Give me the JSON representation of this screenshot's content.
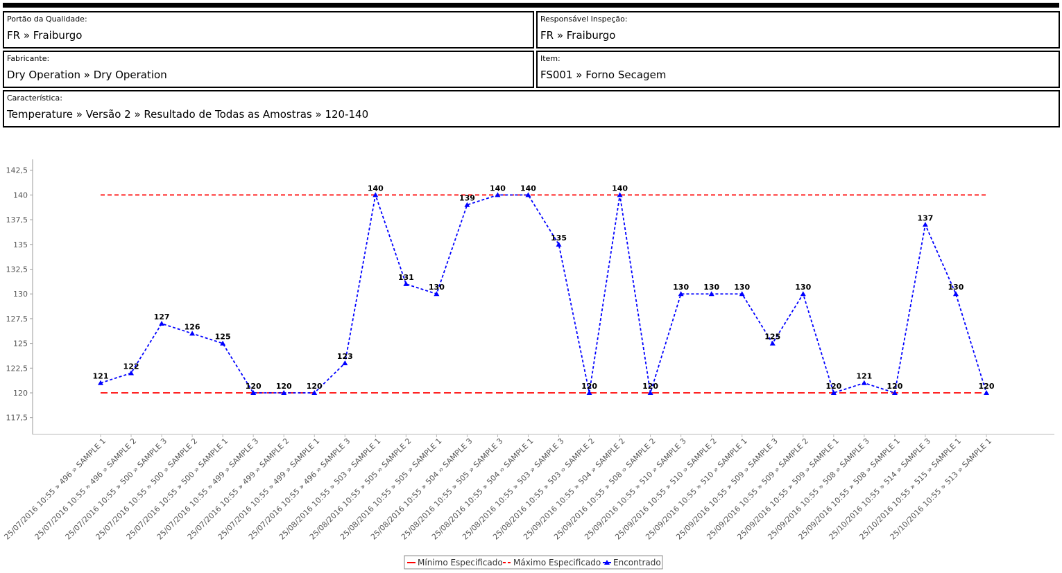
{
  "fields": [
    {
      "label": "Portão da Qualidade:",
      "value": "FR » Fraiburgo"
    },
    {
      "label": "Responsável Inspeção:",
      "value": "FR » Fraiburgo"
    },
    {
      "label": "Fabricante:",
      "value": "Dry Operation » Dry Operation"
    },
    {
      "label": "Item:",
      "value": "FS001 » Forno Secagem"
    },
    {
      "label": "Característica:",
      "value": "Temperature » Versão 2 » Resultado de Todas as Amostras » 120-140"
    }
  ],
  "chart_data": {
    "type": "line",
    "categories": [
      "25/07/2016 10:55 » 496 » SAMPLE 1",
      "25/07/2016 10:55 » 496 » SAMPLE 2",
      "25/07/2016 10:55 » 500 » SAMPLE 3",
      "25/07/2016 10:55 » 500 » SAMPLE 2",
      "25/07/2016 10:55 » 500 » SAMPLE 1",
      "25/07/2016 10:55 » 499 » SAMPLE 3",
      "25/07/2016 10:55 » 499 » SAMPLE 2",
      "25/07/2016 10:55 » 499 » SAMPLE 1",
      "25/07/2016 10:55 » 496 » SAMPLE 3",
      "25/08/2016 10:55 » 503 » SAMPLE 1",
      "25/08/2016 10:55 » 505 » SAMPLE 2",
      "25/08/2016 10:55 » 505 » SAMPLE 1",
      "25/08/2016 10:55 » 504 » SAMPLE 3",
      "25/08/2016 10:55 » 505 » SAMPLE 3",
      "25/08/2016 10:55 » 504 » SAMPLE 1",
      "25/08/2016 10:55 » 503 » SAMPLE 3",
      "25/08/2016 10:55 » 503 » SAMPLE 2",
      "25/09/2016 10:55 » 504 » SAMPLE 2",
      "25/09/2016 10:55 » 508 » SAMPLE 2",
      "25/09/2016 10:55 » 510 » SAMPLE 3",
      "25/09/2016 10:55 » 510 » SAMPLE 2",
      "25/09/2016 10:55 » 510 » SAMPLE 1",
      "25/09/2016 10:55 » 509 » SAMPLE 3",
      "25/09/2016 10:55 » 509 » SAMPLE 2",
      "25/09/2016 10:55 » 509 » SAMPLE 1",
      "25/09/2016 10:55 » 508 » SAMPLE 3",
      "25/09/2016 10:55 » 508 » SAMPLE 1",
      "25/10/2016 10:55 » 514 » SAMPLE 3",
      "25/10/2016 10:55 » 515 » SAMPLE 1",
      "25/10/2016 10:55 » 513 » SAMPLE 1"
    ],
    "series": [
      {
        "name": "Mínimo Especificado",
        "color": "#ff0000",
        "dash": "10 5",
        "values": [
          120,
          120,
          120,
          120,
          120,
          120,
          120,
          120,
          120,
          120,
          120,
          120,
          120,
          120,
          120,
          120,
          120,
          120,
          120,
          120,
          120,
          120,
          120,
          120,
          120,
          120,
          120,
          120,
          120,
          120
        ]
      },
      {
        "name": "Máximo Especificado",
        "color": "#ff0000",
        "dash": "6 4",
        "values": [
          140,
          140,
          140,
          140,
          140,
          140,
          140,
          140,
          140,
          140,
          140,
          140,
          140,
          140,
          140,
          140,
          140,
          140,
          140,
          140,
          140,
          140,
          140,
          140,
          140,
          140,
          140,
          140,
          140,
          140
        ]
      },
      {
        "name": "Encontrado",
        "color": "#0000ff",
        "dash": "4 3",
        "marker": "triangle",
        "data_labels": true,
        "values": [
          121,
          122,
          127,
          126,
          125,
          120,
          120,
          120,
          123,
          140,
          131,
          130,
          139,
          140,
          140,
          135,
          120,
          140,
          120,
          130,
          130,
          130,
          125,
          130,
          120,
          121,
          120,
          137,
          130,
          120
        ]
      }
    ],
    "ylim": [
      115.8,
      143.6
    ],
    "yticks": [
      {
        "value": 117.5,
        "label": "117,5"
      },
      120,
      {
        "value": 122.5,
        "label": "122,5"
      },
      125,
      {
        "value": 127.5,
        "label": "127,5"
      },
      130,
      {
        "value": 132.5,
        "label": "132,5"
      },
      135,
      {
        "value": 137.5,
        "label": "137,5"
      },
      140,
      {
        "value": 142.5,
        "label": "142,5"
      }
    ],
    "legend": "bottom"
  }
}
